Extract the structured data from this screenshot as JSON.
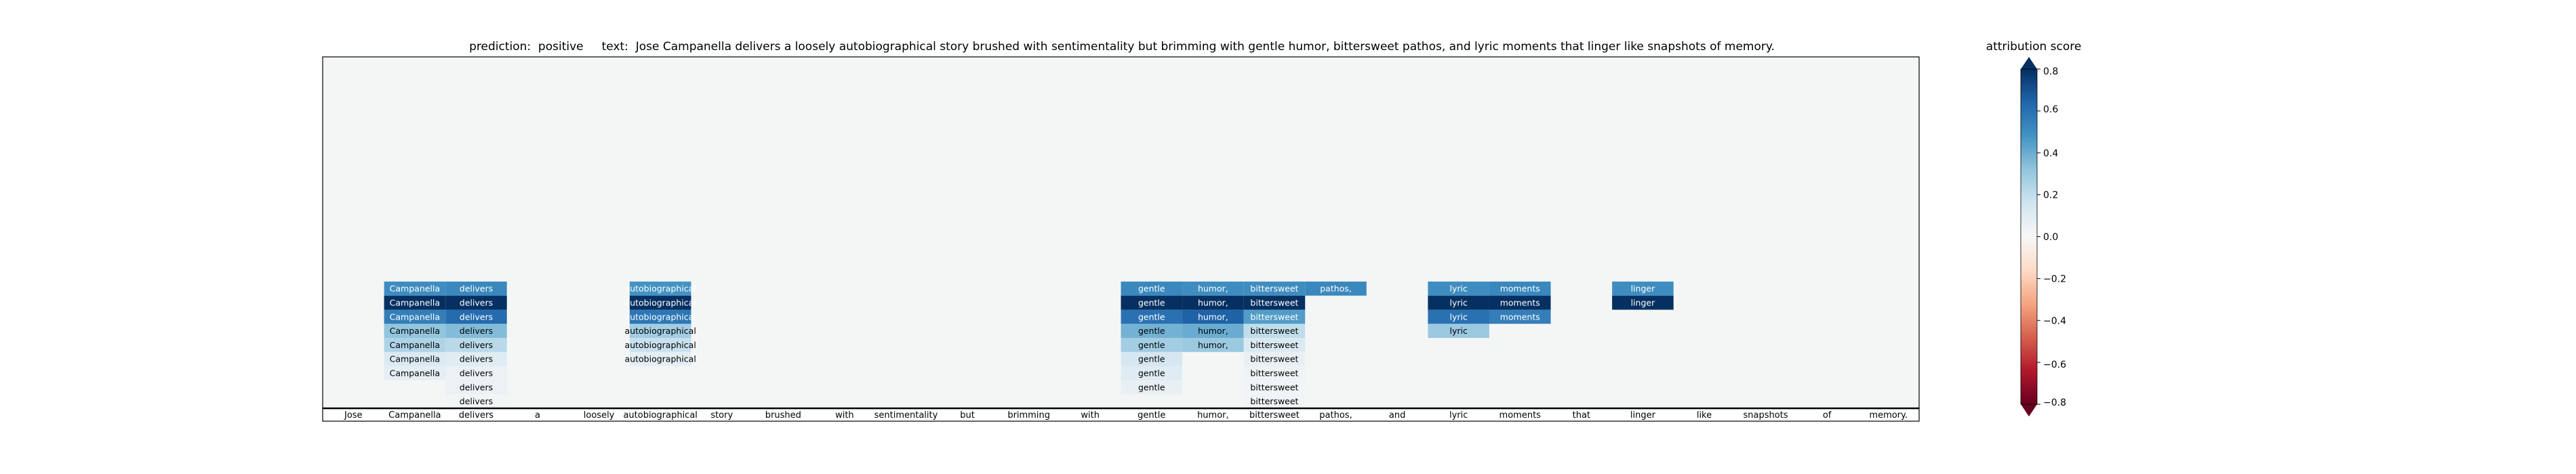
{
  "chart_data": {
    "type": "heatmap",
    "title": "prediction:  positive     text:  Jose Campanella delivers a loosely autobiographical story brushed with sentimentality but brimming with gentle humor, bittersweet pathos, and lyric moments that linger like snapshots of memory.",
    "tokens": [
      "Jose",
      "Campanella",
      "delivers",
      "a",
      "loosely",
      "autobiographical",
      "story",
      "brushed",
      "with",
      "sentimentality",
      "but",
      "brimming",
      "with",
      "gentle",
      "humor,",
      "bittersweet",
      "pathos,",
      "and",
      "lyric",
      "moments",
      "that",
      "linger",
      "like",
      "snapshots",
      "of",
      "memory."
    ],
    "rows_from_bottom": [
      {
        "tokens": [
          "delivers",
          "bittersweet"
        ],
        "scores": [
          0.02,
          0.03
        ]
      },
      {
        "tokens": [
          "delivers",
          "gentle",
          "bittersweet"
        ],
        "scores": [
          0.05,
          0.06,
          0.03
        ]
      },
      {
        "tokens": [
          "Campanella",
          "delivers",
          "gentle",
          "bittersweet"
        ],
        "scores": [
          0.08,
          0.05,
          0.1,
          0.04
        ]
      },
      {
        "tokens": [
          "Campanella",
          "delivers",
          "autobiographical",
          "gentle",
          "bittersweet"
        ],
        "scores": [
          0.12,
          0.1,
          0.08,
          0.14,
          0.06
        ]
      },
      {
        "tokens": [
          "Campanella",
          "delivers",
          "autobiographical",
          "gentle",
          "humor,",
          "bittersweet"
        ],
        "scores": [
          0.25,
          0.22,
          0.18,
          0.28,
          0.3,
          0.12
        ]
      },
      {
        "tokens": [
          "Campanella",
          "delivers",
          "autobiographical",
          "gentle",
          "humor,",
          "bittersweet",
          "lyric"
        ],
        "scores": [
          0.32,
          0.35,
          0.28,
          0.38,
          0.4,
          0.2,
          0.3
        ]
      },
      {
        "tokens": [
          "Campanella",
          "delivers",
          "autobiographical",
          "gentle",
          "humor,",
          "bittersweet",
          "lyric",
          "moments"
        ],
        "scores": [
          0.55,
          0.62,
          0.58,
          0.6,
          0.65,
          0.45,
          0.6,
          0.55
        ]
      },
      {
        "tokens": [
          "Campanella",
          "delivers",
          "autobiographical",
          "gentle",
          "humor,",
          "bittersweet",
          "lyric",
          "moments",
          "linger"
        ],
        "scores": [
          0.82,
          0.85,
          0.8,
          0.83,
          0.82,
          0.8,
          0.82,
          0.84,
          0.86
        ]
      },
      {
        "tokens": [
          "Campanella",
          "delivers",
          "autobiographical",
          "gentle",
          "humor,",
          "bittersweet",
          "pathos,",
          "lyric",
          "moments",
          "linger"
        ],
        "scores": [
          0.5,
          0.52,
          0.48,
          0.52,
          0.5,
          0.5,
          0.52,
          0.5,
          0.52,
          0.5
        ]
      }
    ],
    "colorbar": {
      "label": "attribution score",
      "colormap": "RdBu",
      "range": [
        -0.8,
        0.8
      ],
      "ticks": [
        0.8,
        0.6,
        0.4,
        0.2,
        0.0,
        -0.2,
        -0.4,
        -0.6,
        -0.8
      ],
      "tick_labels": [
        "0.8",
        "0.6",
        "0.4",
        "0.2",
        "0.0",
        "−0.2",
        "−0.4",
        "−0.6",
        "−0.8"
      ]
    },
    "colors": {
      "background": "#f4f6f6",
      "axis": "#000000"
    }
  }
}
